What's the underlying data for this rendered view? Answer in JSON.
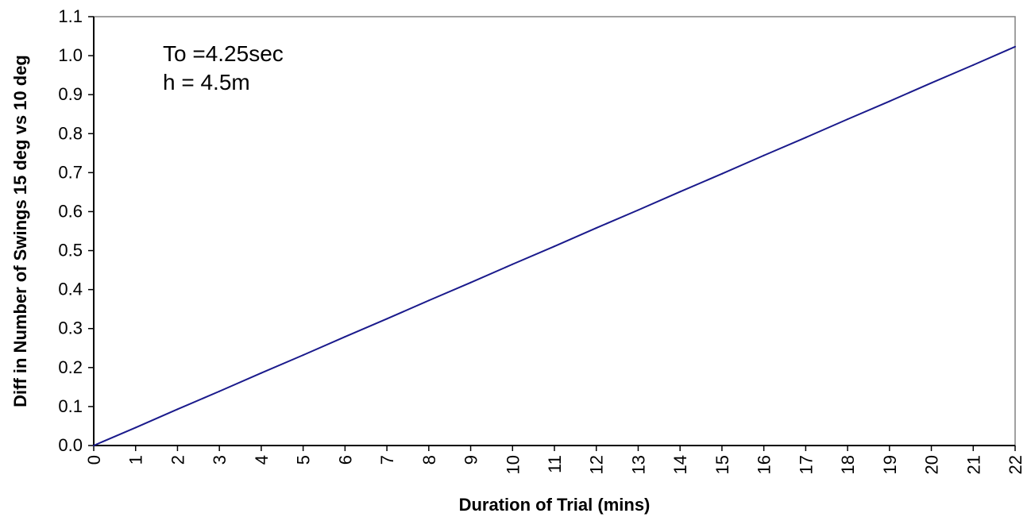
{
  "chart_data": {
    "type": "line",
    "title": "",
    "xlabel": "Duration of Trial (mins)",
    "ylabel": "Diff in Number of Swings 15 deg vs 10 deg",
    "x": [
      0,
      1,
      2,
      3,
      4,
      5,
      6,
      7,
      8,
      9,
      10,
      11,
      12,
      13,
      14,
      15,
      16,
      17,
      18,
      19,
      20,
      21,
      22
    ],
    "x_tick_labels": [
      "0",
      "1",
      "2",
      "3",
      "4",
      "5",
      "6",
      "7",
      "8",
      "9",
      "10",
      "11",
      "12",
      "13",
      "14",
      "15",
      "16",
      "17",
      "18",
      "19",
      "20",
      "21",
      "22"
    ],
    "xlim": [
      0,
      22
    ],
    "ylim": [
      0,
      1.1
    ],
    "y_ticks": [
      0.0,
      0.1,
      0.2,
      0.3,
      0.4,
      0.5,
      0.6,
      0.7,
      0.8,
      0.9,
      1.0,
      1.1
    ],
    "y_tick_labels": [
      "0.0",
      "0.1",
      "0.2",
      "0.3",
      "0.4",
      "0.5",
      "0.6",
      "0.7",
      "0.8",
      "0.9",
      "1.0",
      "1.1"
    ],
    "grid": false,
    "series": [
      {
        "color": "#1a1a8c",
        "values": [
          0.0,
          0.046,
          0.093,
          0.139,
          0.186,
          0.232,
          0.279,
          0.325,
          0.372,
          0.418,
          0.465,
          0.511,
          0.558,
          0.604,
          0.651,
          0.697,
          0.744,
          0.79,
          0.837,
          0.883,
          0.93,
          0.976,
          1.023
        ]
      }
    ],
    "annotations": [
      "To =4.25sec",
      "h = 4.5m"
    ]
  }
}
